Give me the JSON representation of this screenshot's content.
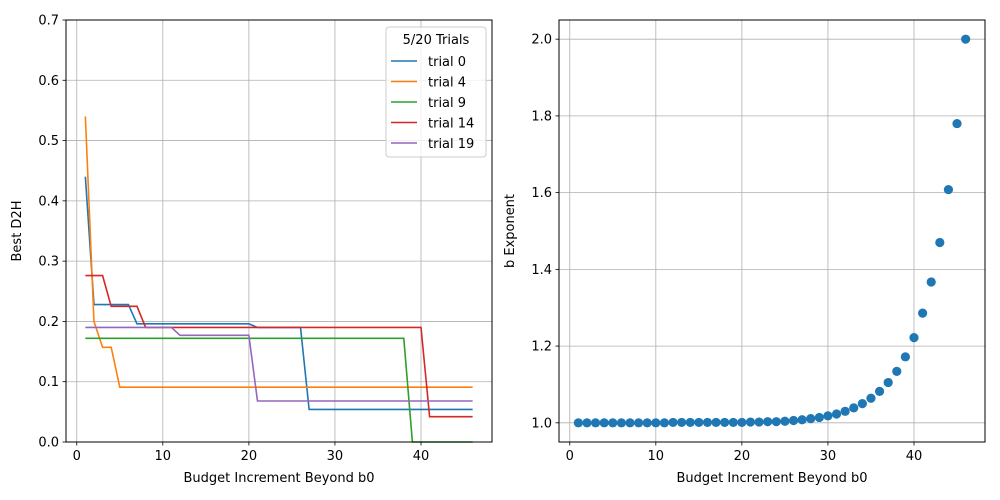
{
  "chart_data": [
    {
      "type": "line",
      "xlabel": "Budget Increment Beyond b0",
      "ylabel": "Best D2H",
      "xlim": [
        -1.25,
        48.25
      ],
      "ylim": [
        0,
        0.7
      ],
      "xticks": [
        0,
        10,
        20,
        30,
        40
      ],
      "yticks": [
        0.0,
        0.1,
        0.2,
        0.3,
        0.4,
        0.5,
        0.6,
        0.7
      ],
      "xtick_labels": [
        "0",
        "10",
        "20",
        "30",
        "40"
      ],
      "ytick_labels": [
        "0.0",
        "0.1",
        "0.2",
        "0.3",
        "0.4",
        "0.5",
        "0.6",
        "0.7"
      ],
      "grid": true,
      "legend": {
        "title": "5/20 Trials",
        "placement": "top-right"
      },
      "series": [
        {
          "name": "trial 0",
          "color": "#1f77b4",
          "points": [
            [
              1,
              0.44
            ],
            [
              2,
              0.228
            ],
            [
              6,
              0.228
            ],
            [
              7,
              0.196
            ],
            [
              20,
              0.196
            ],
            [
              21,
              0.19
            ],
            [
              26,
              0.19
            ],
            [
              27,
              0.054
            ],
            [
              46,
              0.054
            ]
          ]
        },
        {
          "name": "trial 4",
          "color": "#ff7f0e",
          "points": [
            [
              1,
              0.54
            ],
            [
              2,
              0.2
            ],
            [
              3,
              0.157
            ],
            [
              4,
              0.157
            ],
            [
              5,
              0.091
            ],
            [
              46,
              0.091
            ]
          ]
        },
        {
          "name": "trial 9",
          "color": "#2ca02c",
          "points": [
            [
              1,
              0.172
            ],
            [
              38,
              0.172
            ],
            [
              39,
              0.0
            ],
            [
              46,
              0.0
            ]
          ]
        },
        {
          "name": "trial 14",
          "color": "#d62728",
          "points": [
            [
              1,
              0.276
            ],
            [
              3,
              0.276
            ],
            [
              4,
              0.225
            ],
            [
              7,
              0.225
            ],
            [
              8,
              0.19
            ],
            [
              40,
              0.19
            ],
            [
              41,
              0.042
            ],
            [
              46,
              0.042
            ]
          ]
        },
        {
          "name": "trial 19",
          "color": "#9467bd",
          "points": [
            [
              1,
              0.19
            ],
            [
              11,
              0.19
            ],
            [
              12,
              0.177
            ],
            [
              20,
              0.177
            ],
            [
              21,
              0.068
            ],
            [
              46,
              0.068
            ]
          ]
        }
      ]
    },
    {
      "type": "scatter",
      "xlabel": "Budget Increment Beyond b0",
      "ylabel": "b Exponent",
      "xlim": [
        -1.25,
        48.25
      ],
      "ylim": [
        0.95,
        2.05
      ],
      "xticks": [
        0,
        10,
        20,
        30,
        40
      ],
      "yticks": [
        1.0,
        1.2,
        1.4,
        1.6,
        1.8,
        2.0
      ],
      "xtick_labels": [
        "0",
        "10",
        "20",
        "30",
        "40"
      ],
      "ytick_labels": [
        "1.0",
        "1.2",
        "1.4",
        "1.6",
        "1.8",
        "2.0"
      ],
      "grid": true,
      "color": "#1f77b4",
      "x": [
        1,
        2,
        3,
        4,
        5,
        6,
        7,
        8,
        9,
        10,
        11,
        12,
        13,
        14,
        15,
        16,
        17,
        18,
        19,
        20,
        21,
        22,
        23,
        24,
        25,
        26,
        27,
        28,
        29,
        30,
        31,
        32,
        33,
        34,
        35,
        36,
        37,
        38,
        39,
        40,
        41,
        42,
        43,
        44,
        45,
        46
      ],
      "y": [
        1.0,
        1.0,
        1.0,
        1.0,
        1.0,
        1.0,
        1.0,
        1.0,
        1.0,
        1.0,
        1.0,
        1.001,
        1.001,
        1.001,
        1.001,
        1.001,
        1.001,
        1.001,
        1.001,
        1.001,
        1.002,
        1.002,
        1.003,
        1.003,
        1.004,
        1.006,
        1.008,
        1.011,
        1.014,
        1.018,
        1.023,
        1.03,
        1.039,
        1.05,
        1.064,
        1.082,
        1.105,
        1.134,
        1.172,
        1.222,
        1.286,
        1.367,
        1.47,
        1.608,
        1.78,
        2.0
      ]
    }
  ]
}
